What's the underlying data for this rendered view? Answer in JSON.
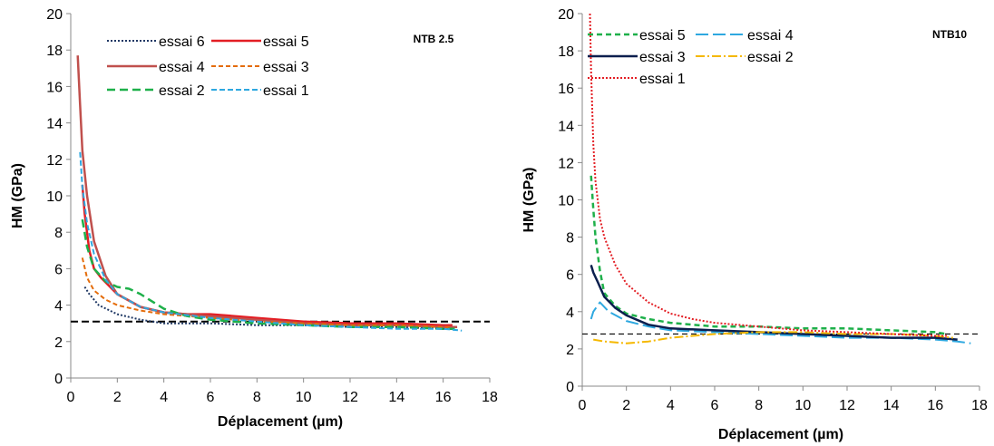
{
  "chart_data": [
    {
      "type": "line",
      "title": "NTB 2.5",
      "xlabel": "Déplacement (µm)",
      "ylabel": "HM (GPa)",
      "xlim": [
        0,
        18
      ],
      "ylim": [
        0,
        20
      ],
      "xticks": [
        "0",
        "2",
        "4",
        "6",
        "8",
        "10",
        "12",
        "14",
        "16",
        "18"
      ],
      "yticks": [
        "0",
        "2",
        "4",
        "6",
        "8",
        "10",
        "12",
        "14",
        "16",
        "18",
        "20"
      ],
      "grid": false,
      "legend_position": "top-left",
      "reference_line": {
        "y": 3.1,
        "style": "dashed",
        "color": "#000000"
      },
      "series": [
        {
          "name": "essai 6",
          "color": "#1f3864",
          "dash": "2,2",
          "width": 2,
          "points": [
            [
              0.6,
              5.0
            ],
            [
              0.8,
              4.6
            ],
            [
              1.2,
              4.0
            ],
            [
              2.0,
              3.5
            ],
            [
              3.0,
              3.2
            ],
            [
              4.0,
              3.0
            ],
            [
              5.0,
              3.0
            ],
            [
              6.0,
              3.0
            ],
            [
              8.0,
              2.9
            ],
            [
              10.0,
              2.9
            ],
            [
              12.0,
              2.8
            ],
            [
              14.0,
              2.8
            ],
            [
              16.0,
              2.7
            ],
            [
              16.4,
              2.7
            ]
          ]
        },
        {
          "name": "essai 5",
          "color": "#e31e24",
          "dash": "",
          "width": 2.5,
          "points": [
            [
              0.5,
              10.6
            ],
            [
              0.6,
              9.0
            ],
            [
              0.8,
              7.0
            ],
            [
              1.0,
              6.0
            ],
            [
              1.3,
              5.5
            ],
            [
              2.0,
              4.6
            ],
            [
              3.0,
              3.9
            ],
            [
              4.0,
              3.6
            ],
            [
              5.0,
              3.5
            ],
            [
              6.0,
              3.5
            ],
            [
              8.0,
              3.3
            ],
            [
              10.0,
              3.1
            ],
            [
              12.0,
              3.0
            ],
            [
              14.0,
              3.0
            ],
            [
              16.0,
              2.9
            ],
            [
              16.4,
              2.9
            ]
          ]
        },
        {
          "name": "essai 4",
          "color": "#c0504d",
          "dash": "",
          "width": 2.5,
          "points": [
            [
              0.3,
              17.7
            ],
            [
              0.4,
              15.0
            ],
            [
              0.5,
              12.5
            ],
            [
              0.7,
              10.0
            ],
            [
              1.0,
              7.5
            ],
            [
              1.5,
              5.6
            ],
            [
              2.0,
              4.6
            ],
            [
              3.0,
              3.9
            ],
            [
              4.0,
              3.6
            ],
            [
              6.0,
              3.4
            ],
            [
              8.0,
              3.2
            ],
            [
              10.0,
              3.0
            ],
            [
              12.0,
              2.9
            ],
            [
              14.0,
              2.9
            ],
            [
              16.0,
              2.8
            ],
            [
              16.6,
              2.8
            ]
          ]
        },
        {
          "name": "essai 3",
          "color": "#e46c0a",
          "dash": "5,3",
          "width": 2,
          "points": [
            [
              0.5,
              6.6
            ],
            [
              0.7,
              5.5
            ],
            [
              1.0,
              4.8
            ],
            [
              1.5,
              4.3
            ],
            [
              2.0,
              4.0
            ],
            [
              3.0,
              3.7
            ],
            [
              4.0,
              3.5
            ],
            [
              6.0,
              3.3
            ],
            [
              8.0,
              3.1
            ],
            [
              10.0,
              3.0
            ],
            [
              12.0,
              2.9
            ],
            [
              14.0,
              2.9
            ],
            [
              16.0,
              2.8
            ],
            [
              16.3,
              2.8
            ]
          ]
        },
        {
          "name": "essai 2",
          "color": "#1eb04a",
          "dash": "9,5",
          "width": 2.5,
          "points": [
            [
              0.5,
              8.7
            ],
            [
              0.7,
              7.2
            ],
            [
              1.0,
              6.0
            ],
            [
              1.5,
              5.3
            ],
            [
              2.0,
              5.0
            ],
            [
              2.5,
              4.9
            ],
            [
              3.0,
              4.6
            ],
            [
              3.5,
              4.2
            ],
            [
              4.0,
              3.8
            ],
            [
              5.0,
              3.4
            ],
            [
              6.0,
              3.2
            ],
            [
              8.0,
              3.0
            ],
            [
              10.0,
              2.9
            ],
            [
              12.0,
              2.8
            ],
            [
              14.0,
              2.8
            ],
            [
              16.0,
              2.7
            ],
            [
              16.5,
              2.7
            ]
          ]
        },
        {
          "name": "essai 1",
          "color": "#2ea8e0",
          "dash": "6,3",
          "width": 2,
          "points": [
            [
              0.4,
              12.4
            ],
            [
              0.5,
              10.5
            ],
            [
              0.7,
              8.5
            ],
            [
              1.0,
              6.8
            ],
            [
              1.5,
              5.4
            ],
            [
              2.0,
              4.6
            ],
            [
              3.0,
              3.9
            ],
            [
              4.0,
              3.6
            ],
            [
              6.0,
              3.3
            ],
            [
              8.0,
              3.1
            ],
            [
              10.0,
              2.9
            ],
            [
              12.0,
              2.8
            ],
            [
              14.0,
              2.7
            ],
            [
              16.0,
              2.7
            ],
            [
              16.8,
              2.6
            ]
          ]
        }
      ]
    },
    {
      "type": "line",
      "title": "NTB10",
      "xlabel": "Déplacement (µm)",
      "ylabel": "HM (GPa)",
      "xlim": [
        0,
        18
      ],
      "ylim": [
        0,
        20
      ],
      "xticks": [
        "0",
        "2",
        "4",
        "6",
        "8",
        "10",
        "12",
        "14",
        "16",
        "18"
      ],
      "yticks": [
        "0",
        "2",
        "4",
        "6",
        "8",
        "10",
        "12",
        "14",
        "16",
        "18",
        "20"
      ],
      "grid": false,
      "legend_position": "top-left",
      "reference_line": {
        "y": 2.8,
        "style": "dashed",
        "color": "#000000"
      },
      "series": [
        {
          "name": "essai 5",
          "color": "#1eb04a",
          "dash": "6,4",
          "width": 2.5,
          "points": [
            [
              0.4,
              11.3
            ],
            [
              0.5,
              9.5
            ],
            [
              0.6,
              8.0
            ],
            [
              0.8,
              6.2
            ],
            [
              1.0,
              5.0
            ],
            [
              1.5,
              4.3
            ],
            [
              2.0,
              3.9
            ],
            [
              3.0,
              3.6
            ],
            [
              4.0,
              3.4
            ],
            [
              5.0,
              3.3
            ],
            [
              6.0,
              3.2
            ],
            [
              8.0,
              3.2
            ],
            [
              10.0,
              3.1
            ],
            [
              12.0,
              3.1
            ],
            [
              14.0,
              3.0
            ],
            [
              16.0,
              2.9
            ],
            [
              16.5,
              2.8
            ]
          ]
        },
        {
          "name": "essai 4",
          "color": "#2ea8e0",
          "dash": "14,5",
          "width": 2,
          "points": [
            [
              0.4,
              3.6
            ],
            [
              0.5,
              4.0
            ],
            [
              0.8,
              4.5
            ],
            [
              1.2,
              4.0
            ],
            [
              2.0,
              3.5
            ],
            [
              3.0,
              3.2
            ],
            [
              4.0,
              3.0
            ],
            [
              6.0,
              2.9
            ],
            [
              8.0,
              2.8
            ],
            [
              10.0,
              2.7
            ],
            [
              12.0,
              2.6
            ],
            [
              14.0,
              2.6
            ],
            [
              16.0,
              2.5
            ],
            [
              17.0,
              2.4
            ],
            [
              17.6,
              2.3
            ]
          ]
        },
        {
          "name": "essai 3",
          "color": "#0b1f4e",
          "dash": "",
          "width": 2.5,
          "points": [
            [
              0.4,
              6.5
            ],
            [
              0.5,
              6.1
            ],
            [
              0.7,
              5.6
            ],
            [
              1.0,
              4.8
            ],
            [
              1.5,
              4.2
            ],
            [
              2.0,
              3.8
            ],
            [
              3.0,
              3.3
            ],
            [
              4.0,
              3.1
            ],
            [
              6.0,
              3.0
            ],
            [
              8.0,
              2.9
            ],
            [
              10.0,
              2.8
            ],
            [
              12.0,
              2.7
            ],
            [
              14.0,
              2.6
            ],
            [
              16.0,
              2.6
            ],
            [
              17.0,
              2.5
            ]
          ]
        },
        {
          "name": "essai 2",
          "color": "#f5b800",
          "dash": "10,3,2,3",
          "width": 2,
          "points": [
            [
              0.5,
              2.5
            ],
            [
              1.0,
              2.4
            ],
            [
              2.0,
              2.3
            ],
            [
              3.0,
              2.4
            ],
            [
              4.0,
              2.6
            ],
            [
              5.0,
              2.7
            ],
            [
              6.0,
              2.8
            ],
            [
              8.0,
              2.9
            ],
            [
              10.0,
              2.9
            ],
            [
              12.0,
              2.8
            ],
            [
              14.0,
              2.8
            ],
            [
              16.0,
              2.7
            ],
            [
              16.8,
              2.6
            ]
          ]
        },
        {
          "name": "essai 1",
          "color": "#e31e24",
          "dash": "2,2",
          "width": 2,
          "points": [
            [
              0.35,
              20.0
            ],
            [
              0.4,
              17.0
            ],
            [
              0.5,
              13.0
            ],
            [
              0.6,
              11.0
            ],
            [
              0.8,
              9.0
            ],
            [
              1.0,
              8.0
            ],
            [
              1.5,
              6.5
            ],
            [
              2.0,
              5.5
            ],
            [
              3.0,
              4.5
            ],
            [
              4.0,
              3.9
            ],
            [
              5.0,
              3.6
            ],
            [
              6.0,
              3.4
            ],
            [
              8.0,
              3.2
            ],
            [
              10.0,
              3.0
            ],
            [
              12.0,
              2.9
            ],
            [
              14.0,
              2.8
            ],
            [
              16.0,
              2.7
            ],
            [
              16.6,
              2.7
            ]
          ]
        }
      ]
    }
  ]
}
